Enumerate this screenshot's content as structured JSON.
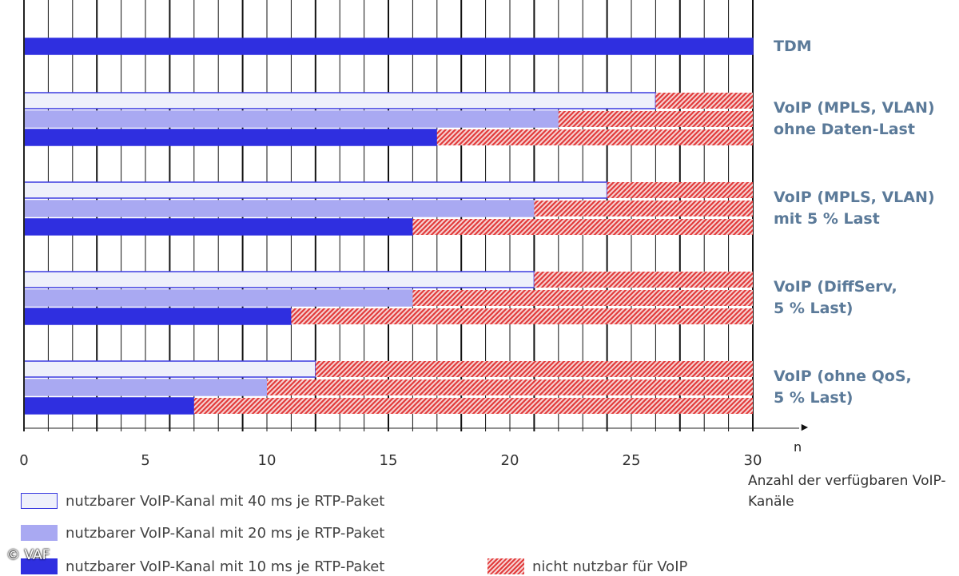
{
  "chart_data": {
    "type": "bar",
    "orientation": "horizontal",
    "stacked": true,
    "title": "",
    "xlabel": "Anzahl der verfügbaren VoIP-Kanäle",
    "xunit": "n",
    "xlim": [
      0,
      30
    ],
    "xticks": [
      0,
      5,
      10,
      15,
      20,
      25,
      30
    ],
    "total_channels": 30,
    "groups": [
      {
        "label_lines": [
          "TDM"
        ],
        "bars": [
          {
            "series": "tdm",
            "usable": 30
          }
        ]
      },
      {
        "label_lines": [
          "VoIP (MPLS, VLAN)",
          "ohne Daten-Last"
        ],
        "bars": [
          {
            "series": "40ms",
            "usable": 26
          },
          {
            "series": "20ms",
            "usable": 22
          },
          {
            "series": "10ms",
            "usable": 17
          }
        ]
      },
      {
        "label_lines": [
          "VoIP (MPLS, VLAN)",
          "mit 5 % Last"
        ],
        "bars": [
          {
            "series": "40ms",
            "usable": 24
          },
          {
            "series": "20ms",
            "usable": 21
          },
          {
            "series": "10ms",
            "usable": 16
          }
        ]
      },
      {
        "label_lines": [
          "VoIP (DiffServ,",
          "5 % Last)"
        ],
        "bars": [
          {
            "series": "40ms",
            "usable": 21
          },
          {
            "series": "20ms",
            "usable": 16
          },
          {
            "series": "10ms",
            "usable": 11
          }
        ]
      },
      {
        "label_lines": [
          "VoIP (ohne QoS,",
          "5 % Last)"
        ],
        "bars": [
          {
            "series": "40ms",
            "usable": 12
          },
          {
            "series": "20ms",
            "usable": 10
          },
          {
            "series": "10ms",
            "usable": 7
          }
        ]
      }
    ],
    "series": [
      {
        "key": "40ms",
        "name": "nutzbarer VoIP-Kanal mit 40 ms je RTP-Paket",
        "color": "#eef0fb",
        "border": "#3b3be0"
      },
      {
        "key": "20ms",
        "name": "nutzbarer VoIP-Kanal mit 20 ms je RTP-Paket",
        "color": "#a9a9f2",
        "border": "#a9a9f2"
      },
      {
        "key": "10ms",
        "name": "nutzbarer VoIP-Kanal mit 10 ms je RTP-Paket",
        "color": "#2f2fe0",
        "border": "#2f2fe0"
      },
      {
        "key": "unusable",
        "name": "nicht nutzbar für VoIP",
        "color": "#e84a4a",
        "pattern": "hatched"
      }
    ]
  },
  "colors": {
    "tdm": "#2f2fe0",
    "label": "#5b7a99",
    "grid": "#111111"
  },
  "copyright": "© VAF"
}
